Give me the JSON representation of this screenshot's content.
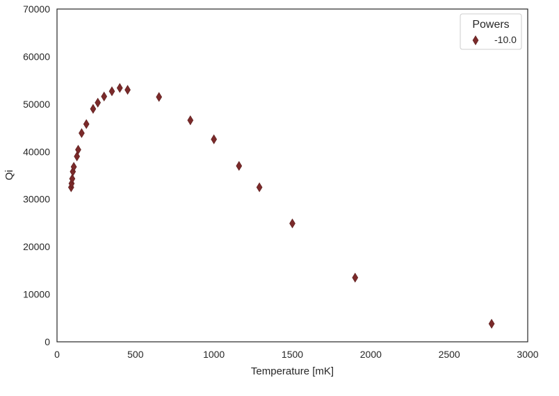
{
  "chart_data": {
    "type": "scatter",
    "title": "",
    "xlabel": "Temperature [mK]",
    "ylabel": "Qi",
    "xlim": [
      0,
      3000
    ],
    "ylim": [
      0,
      70000
    ],
    "xticks": [
      0,
      500,
      1000,
      1500,
      2000,
      2500,
      3000
    ],
    "yticks": [
      0,
      10000,
      20000,
      30000,
      40000,
      50000,
      60000,
      70000
    ],
    "grid": false,
    "legend": {
      "title": "Powers",
      "placement": "top-right"
    },
    "series": [
      {
        "name": "-10.0",
        "marker": "diamond",
        "color": "#7b2a2a",
        "x": [
          90,
          93,
          97,
          101,
          107,
          127,
          135,
          157,
          187,
          230,
          260,
          300,
          350,
          400,
          450,
          650,
          850,
          1000,
          1160,
          1290,
          1500,
          1900,
          2770
        ],
        "y": [
          32500,
          33300,
          34300,
          35800,
          36800,
          39000,
          40400,
          43900,
          45800,
          49000,
          50300,
          51600,
          52700,
          53400,
          53000,
          51500,
          46600,
          42600,
          37000,
          32500,
          24900,
          13500,
          3800
        ]
      }
    ]
  }
}
